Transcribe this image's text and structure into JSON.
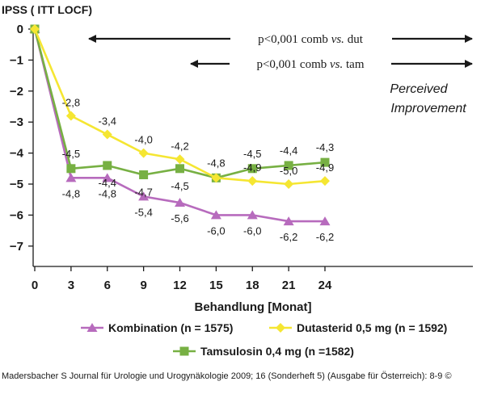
{
  "chart_data": {
    "type": "line",
    "ylabel": "IPSS ( ITT LOCF)",
    "xlabel": "Behandlung [Monat]",
    "x": [
      0,
      3,
      6,
      9,
      12,
      15,
      18,
      21,
      24
    ],
    "xticks": [
      "0",
      "3",
      "6",
      "9",
      "12",
      "15",
      "18",
      "21",
      "24"
    ],
    "yticks": [
      "0",
      "−1",
      "−2",
      "−3",
      "−4",
      "−5",
      "−6",
      "−7"
    ],
    "ylim": [
      -7,
      0
    ],
    "grid": false,
    "legend_position": "bottom",
    "series": [
      {
        "name": "Kombination (n = 1575)",
        "color": "#b76bbd",
        "marker": "triangle",
        "values": [
          0,
          -4.8,
          -4.8,
          -5.4,
          -5.6,
          -6.0,
          -6.0,
          -6.2,
          -6.2
        ],
        "labels": [
          "",
          "-4,8",
          "-4,8",
          "-5,4",
          "-5,6",
          "-6,0",
          "-6,0",
          "-6,2",
          "-6,2"
        ]
      },
      {
        "name": "Dutasterid 0,5 mg (n = 1592)",
        "color": "#f5e632",
        "marker": "diamond",
        "values": [
          0,
          -2.8,
          -3.4,
          -4.0,
          -4.2,
          -4.8,
          -4.9,
          -5.0,
          -4.9
        ],
        "labels": [
          "",
          "-2,8",
          "-3,4",
          "-4,0",
          "-4,2",
          "-4,8",
          "-4,9",
          "-5,0",
          "-4,9"
        ]
      },
      {
        "name": "Tamsulosin 0,4 mg  (n =1582)",
        "color": "#77b043",
        "marker": "square",
        "values": [
          0,
          -4.5,
          -4.4,
          -4.7,
          -4.5,
          -4.8,
          -4.5,
          -4.4,
          -4.3
        ],
        "labels": [
          "",
          "-4,5",
          "-4,4",
          "-4,7",
          "-4,5",
          "",
          "-4,5",
          "-4,4",
          "-4,3"
        ]
      }
    ],
    "annotations": {
      "comparison_1": {
        "before": "p<0,001 comb ",
        "italic": "vs.",
        "after": " dut"
      },
      "comparison_2": {
        "before": "p<0,001 comb ",
        "italic": "vs.",
        "after": " tam"
      },
      "note_line_1": "Perceived",
      "note_line_2": "Improvement"
    }
  },
  "source_text": "Madersbacher S Journal für Urologie und Urogynäkologie 2009; 16 (Sonderheft 5) (Ausgabe für Österreich): 8-9 ©"
}
